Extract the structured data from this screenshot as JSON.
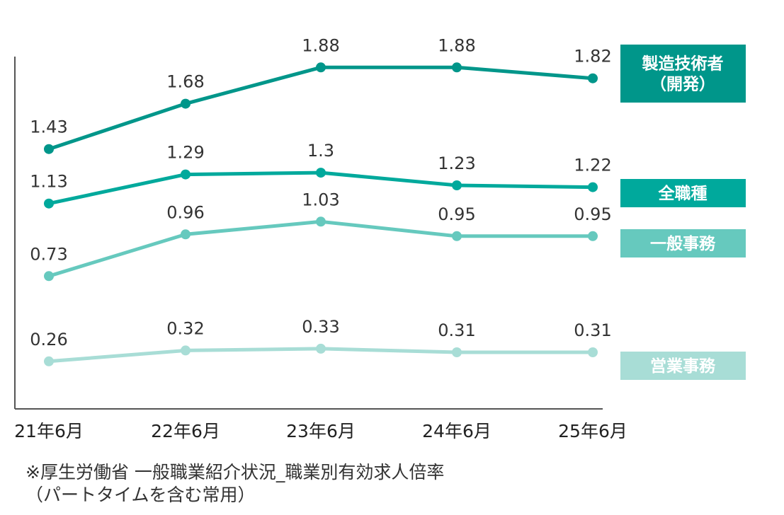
{
  "chart_data": {
    "type": "line",
    "categories": [
      "21年6月",
      "22年6月",
      "23年6月",
      "24年6月",
      "25年6月"
    ],
    "series": [
      {
        "name": "製造技術者\n（開発）",
        "values": [
          1.43,
          1.68,
          1.88,
          1.88,
          1.82
        ],
        "color": "#00968a"
      },
      {
        "name": "全職種",
        "values": [
          1.13,
          1.29,
          1.3,
          1.23,
          1.22
        ],
        "color": "#00a99c"
      },
      {
        "name": "一般事務",
        "values": [
          0.73,
          0.96,
          1.03,
          0.95,
          0.95
        ],
        "color": "#66c9be"
      },
      {
        "name": "営業事務",
        "values": [
          0.26,
          0.32,
          0.33,
          0.31,
          0.31
        ],
        "color": "#a8ddd6"
      }
    ],
    "ylim": [
      0,
      2.0
    ],
    "grid": false,
    "legend": "right"
  },
  "notes": {
    "source": "※厚生労働省 一般職業紹介状況_職業別有効求人倍率",
    "detail": "（パートタイムを含む常用）"
  }
}
